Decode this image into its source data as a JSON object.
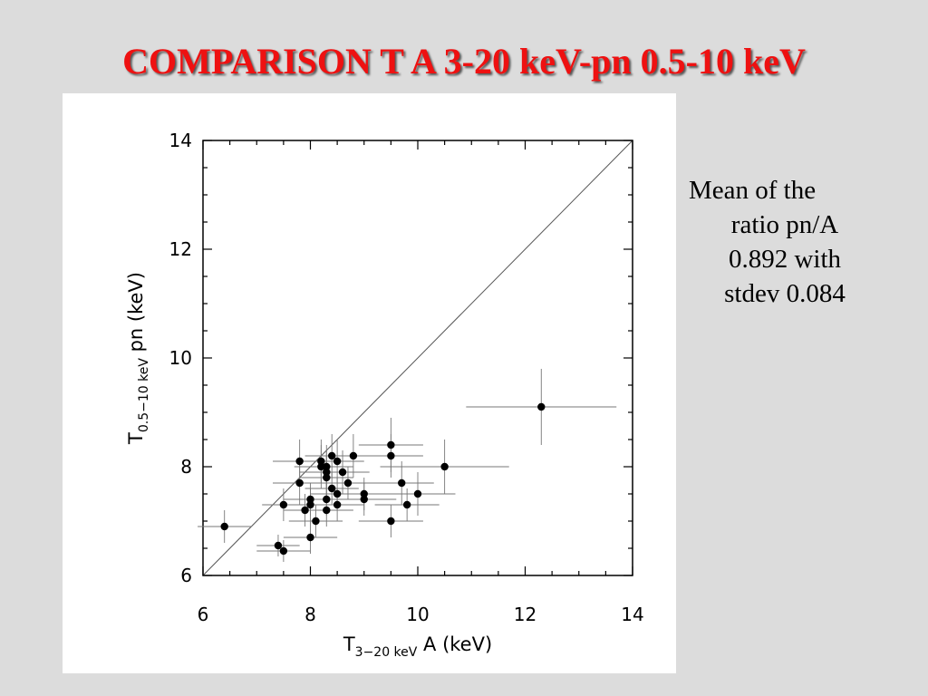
{
  "slide": {
    "title": "COMPARISON T A 3-20 keV-pn 0.5-10 keV",
    "note_lines": [
      "Mean of the",
      "ratio pn/A",
      "0.892 with",
      "stdev 0.084"
    ],
    "title_color": "#ee1111",
    "background_color": "#dcdcdc"
  },
  "chart_data": {
    "type": "scatter",
    "xlabel": {
      "main": "T",
      "sub": "3−20 keV",
      "suffix": " A (keV)"
    },
    "ylabel": {
      "main": "T",
      "sub": "0.5−10 keV",
      "suffix": " pn (keV)"
    },
    "xlim": [
      6,
      14
    ],
    "ylim": [
      6,
      14
    ],
    "x_ticks": [
      6,
      8,
      10,
      12,
      14
    ],
    "y_ticks": [
      6,
      8,
      10,
      12,
      14
    ],
    "grid": false,
    "reference_line": "y = x",
    "marker_color": "#000000",
    "points": [
      {
        "x": 6.4,
        "y": 6.9,
        "xerr": 0.5,
        "yerr": 0.3
      },
      {
        "x": 7.4,
        "y": 6.55,
        "xerr": 0.4,
        "yerr": 0.2
      },
      {
        "x": 7.5,
        "y": 6.45,
        "xerr": 0.5,
        "yerr": 0.2
      },
      {
        "x": 7.5,
        "y": 7.3,
        "xerr": 0.4,
        "yerr": 0.3
      },
      {
        "x": 7.8,
        "y": 8.1,
        "xerr": 0.5,
        "yerr": 0.4
      },
      {
        "x": 7.8,
        "y": 7.7,
        "xerr": 0.5,
        "yerr": 0.4
      },
      {
        "x": 7.9,
        "y": 7.2,
        "xerr": 0.4,
        "yerr": 0.3
      },
      {
        "x": 8.0,
        "y": 7.4,
        "xerr": 0.5,
        "yerr": 0.3
      },
      {
        "x": 8.0,
        "y": 7.3,
        "xerr": 0.5,
        "yerr": 0.3
      },
      {
        "x": 8.0,
        "y": 6.7,
        "xerr": 0.5,
        "yerr": 0.3
      },
      {
        "x": 8.1,
        "y": 7.0,
        "xerr": 0.5,
        "yerr": 0.3
      },
      {
        "x": 8.2,
        "y": 8.1,
        "xerr": 0.5,
        "yerr": 0.4
      },
      {
        "x": 8.2,
        "y": 8.0,
        "xerr": 0.5,
        "yerr": 0.4
      },
      {
        "x": 8.3,
        "y": 8.0,
        "xerr": 0.5,
        "yerr": 0.4
      },
      {
        "x": 8.3,
        "y": 7.9,
        "xerr": 0.5,
        "yerr": 0.4
      },
      {
        "x": 8.3,
        "y": 7.8,
        "xerr": 0.5,
        "yerr": 0.4
      },
      {
        "x": 8.3,
        "y": 7.4,
        "xerr": 0.5,
        "yerr": 0.3
      },
      {
        "x": 8.3,
        "y": 7.2,
        "xerr": 0.5,
        "yerr": 0.3
      },
      {
        "x": 8.4,
        "y": 8.2,
        "xerr": 0.5,
        "yerr": 0.4
      },
      {
        "x": 8.4,
        "y": 7.6,
        "xerr": 0.5,
        "yerr": 0.3
      },
      {
        "x": 8.5,
        "y": 8.1,
        "xerr": 0.5,
        "yerr": 0.4
      },
      {
        "x": 8.5,
        "y": 7.5,
        "xerr": 0.5,
        "yerr": 0.3
      },
      {
        "x": 8.5,
        "y": 7.3,
        "xerr": 0.5,
        "yerr": 0.3
      },
      {
        "x": 8.6,
        "y": 7.9,
        "xerr": 0.5,
        "yerr": 0.4
      },
      {
        "x": 8.7,
        "y": 7.7,
        "xerr": 0.5,
        "yerr": 0.3
      },
      {
        "x": 8.8,
        "y": 8.2,
        "xerr": 0.6,
        "yerr": 0.4
      },
      {
        "x": 9.0,
        "y": 7.5,
        "xerr": 0.6,
        "yerr": 0.3
      },
      {
        "x": 9.0,
        "y": 7.4,
        "xerr": 0.6,
        "yerr": 0.3
      },
      {
        "x": 9.5,
        "y": 8.4,
        "xerr": 0.6,
        "yerr": 0.5
      },
      {
        "x": 9.5,
        "y": 8.2,
        "xerr": 0.6,
        "yerr": 0.4
      },
      {
        "x": 9.5,
        "y": 7.0,
        "xerr": 0.6,
        "yerr": 0.3
      },
      {
        "x": 9.7,
        "y": 7.7,
        "xerr": 0.6,
        "yerr": 0.4
      },
      {
        "x": 9.8,
        "y": 7.3,
        "xerr": 0.6,
        "yerr": 0.3
      },
      {
        "x": 10.0,
        "y": 7.5,
        "xerr": 0.7,
        "yerr": 0.4
      },
      {
        "x": 10.5,
        "y": 8.0,
        "xerr": 1.2,
        "yerr": 0.5
      },
      {
        "x": 12.3,
        "y": 9.1,
        "xerr": 1.4,
        "yerr": 0.7
      }
    ]
  }
}
